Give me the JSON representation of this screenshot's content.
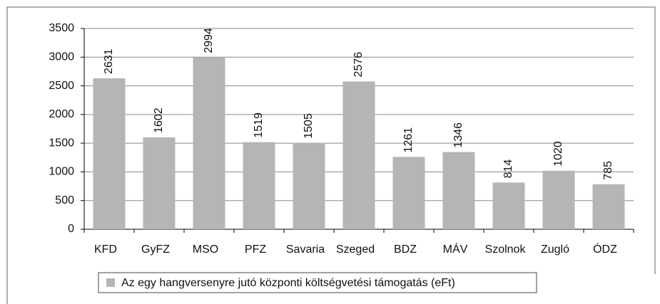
{
  "chart_data": {
    "type": "bar",
    "categories": [
      "KFD",
      "GyFZ",
      "MSO",
      "PFZ",
      "Savaria",
      "Szeged",
      "BDZ",
      "MÁV",
      "Szolnok",
      "Zugló",
      "ÓDZ"
    ],
    "series": [
      {
        "name": "Az egy hangversenyre jutó központi költségvetési támogatás (eFt)",
        "color": "#b5b5b5",
        "values": [
          2631,
          1602,
          2994,
          1519,
          1505,
          2576,
          1261,
          1346,
          814,
          1020,
          785
        ]
      }
    ],
    "ylim": [
      0,
      3500
    ],
    "yticks": [
      0,
      500,
      1000,
      1500,
      2000,
      2500,
      3000,
      3500
    ],
    "grid": true,
    "legend": "bottom"
  }
}
